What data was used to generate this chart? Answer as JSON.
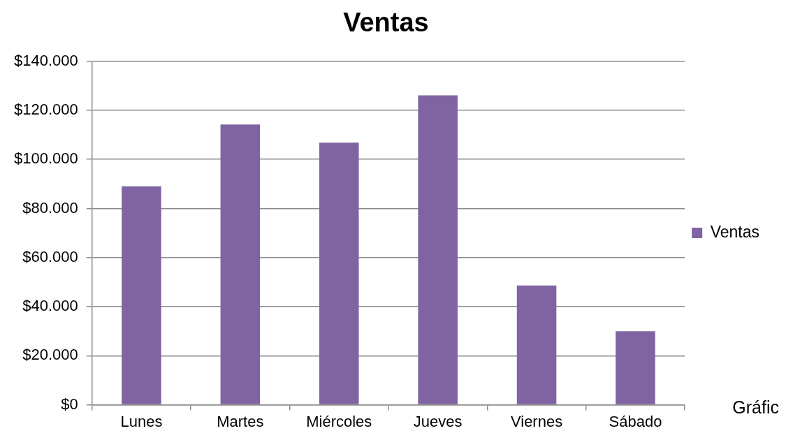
{
  "chart_data": {
    "type": "bar",
    "title": "Ventas",
    "categories": [
      "Lunes",
      "Martes",
      "Miércoles",
      "Jueves",
      "Viernes",
      "Sábado"
    ],
    "series": [
      {
        "name": "Ventas",
        "color": "#8064a2",
        "values": [
          89000,
          114200,
          106800,
          126100,
          48600,
          30000
        ]
      }
    ],
    "ylim": [
      0,
      140000
    ],
    "yticks": [
      {
        "value": 0,
        "label": "$0"
      },
      {
        "value": 20000,
        "label": "$20.000"
      },
      {
        "value": 40000,
        "label": "$40.000"
      },
      {
        "value": 60000,
        "label": "$60.000"
      },
      {
        "value": 80000,
        "label": "$80.000"
      },
      {
        "value": 100000,
        "label": "$100.000"
      },
      {
        "value": 120000,
        "label": "$120.000"
      },
      {
        "value": 140000,
        "label": "$140.000"
      }
    ],
    "grid": "y",
    "legend": "right",
    "annotations": [
      "Gráfic"
    ]
  }
}
